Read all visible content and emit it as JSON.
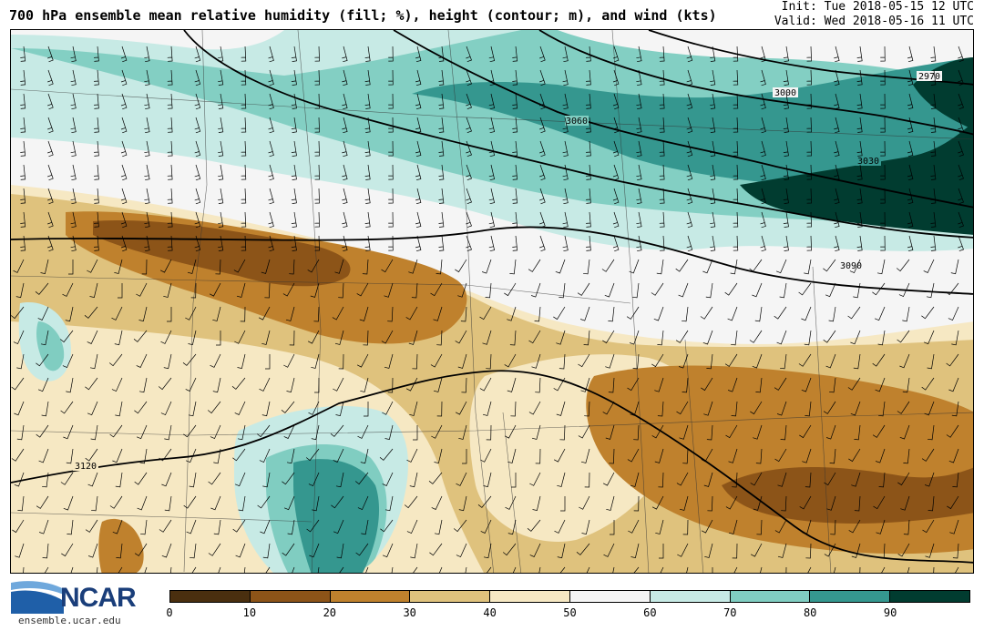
{
  "header": {
    "title": "700 hPa ensemble mean relative humidity (fill; %), height (contour; m), and wind (kts)",
    "init": "Init: Tue 2018-05-15 12 UTC",
    "valid": "Valid: Wed 2018-05-16 11 UTC"
  },
  "map": {
    "contour_labels": [
      "2970",
      "3000",
      "3030",
      "3060",
      "3090",
      "3120"
    ]
  },
  "colorbar": {
    "colors": [
      "#4a2f0f",
      "#8c5418",
      "#bf812d",
      "#dfc27d",
      "#f6e8c3",
      "#f5f5f5",
      "#c7eae5",
      "#80cdc1",
      "#35978f",
      "#013c30"
    ],
    "ticks": [
      "0",
      "10",
      "20",
      "30",
      "40",
      "50",
      "60",
      "70",
      "80",
      "90"
    ]
  },
  "logo": {
    "name": "NCAR",
    "url": "ensemble.ucar.edu"
  }
}
